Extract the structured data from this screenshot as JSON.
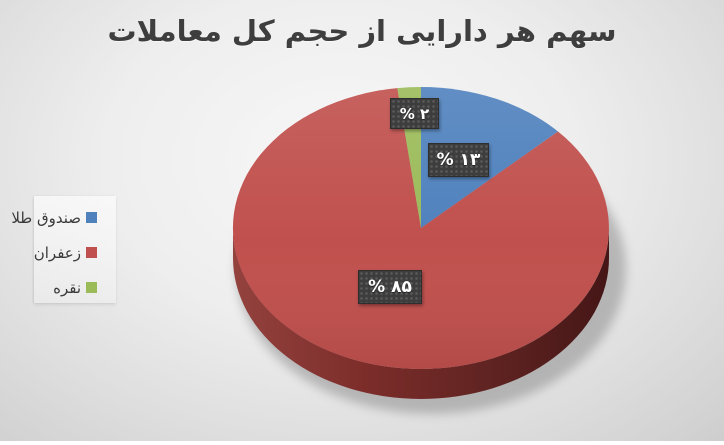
{
  "title": "سهم هر دارایی از حجم کل معاملات",
  "legend": {
    "position": "left",
    "items": [
      {
        "label": "صندوق طلا",
        "color": "#4F81BD"
      },
      {
        "label": "زعفران",
        "color": "#C0504D"
      },
      {
        "label": "نقره",
        "color": "#9BBB59"
      }
    ]
  },
  "chart_data": {
    "type": "pie",
    "style": "3d",
    "title": "سهم هر دارایی از حجم کل معاملات",
    "categories": [
      "صندوق طلا",
      "زعفران",
      "نقره"
    ],
    "values": [
      13,
      85,
      2
    ],
    "unit": "%",
    "labels": [
      "% ۱۳",
      "% ۸۵",
      "% ۲"
    ],
    "colors": [
      "#4F81BD",
      "#C0504D",
      "#9BBB59"
    ],
    "legend_position": "left",
    "start_angle_deg": 0,
    "direction": "clockwise",
    "label_style": {
      "background": "#3d3d3d",
      "text_color": "#ffffff",
      "pattern": "dotted"
    }
  }
}
